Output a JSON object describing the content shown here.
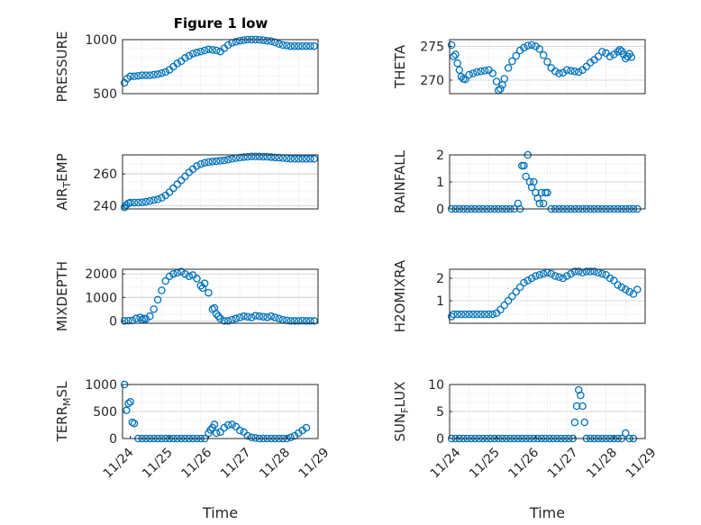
{
  "title": "Figure 1 low",
  "colors": {
    "marker": "#0072BD",
    "axes": "#262626",
    "grid": "#d9d9d9"
  },
  "chart_data": [
    {
      "type": "scatter",
      "ylabel": "PRESSURE",
      "ylim": [
        500,
        1000
      ],
      "yticks": [
        500,
        1000
      ],
      "grid": true,
      "xlim": [
        0,
        5
      ],
      "xticks": [],
      "xticklabels": [],
      "xlabel": "",
      "x": [
        0.05,
        0.12,
        0.2,
        0.3,
        0.4,
        0.5,
        0.6,
        0.7,
        0.8,
        0.9,
        1.0,
        1.1,
        1.2,
        1.3,
        1.4,
        1.5,
        1.6,
        1.7,
        1.8,
        1.9,
        2.0,
        2.1,
        2.2,
        2.3,
        2.4,
        2.5,
        2.6,
        2.7,
        2.8,
        2.9,
        3.0,
        3.1,
        3.2,
        3.3,
        3.4,
        3.5,
        3.6,
        3.7,
        3.8,
        3.9,
        4.0,
        4.1,
        4.2,
        4.3,
        4.4,
        4.5,
        4.6,
        4.7,
        4.8,
        4.9
      ],
      "y": [
        600,
        640,
        660,
        660,
        665,
        670,
        670,
        670,
        675,
        680,
        690,
        700,
        720,
        750,
        780,
        800,
        830,
        850,
        870,
        880,
        890,
        900,
        910,
        905,
        900,
        890,
        920,
        950,
        970,
        980,
        990,
        995,
        1000,
        1000,
        1000,
        998,
        995,
        990,
        985,
        975,
        960,
        950,
        945,
        940,
        940,
        940,
        940,
        940,
        940,
        940
      ]
    },
    {
      "type": "scatter",
      "ylabel": "THETA",
      "ylim": [
        268,
        276
      ],
      "yticks": [
        270,
        275
      ],
      "grid": true,
      "xlim": [
        0,
        5
      ],
      "xticks": [],
      "xticklabels": [],
      "xlabel": "",
      "x": [
        0.05,
        0.1,
        0.15,
        0.2,
        0.25,
        0.3,
        0.35,
        0.4,
        0.5,
        0.6,
        0.7,
        0.8,
        0.9,
        1.0,
        1.1,
        1.2,
        1.25,
        1.3,
        1.35,
        1.4,
        1.5,
        1.6,
        1.7,
        1.8,
        1.9,
        2.0,
        2.1,
        2.2,
        2.3,
        2.4,
        2.5,
        2.6,
        2.7,
        2.8,
        2.9,
        3.0,
        3.1,
        3.2,
        3.3,
        3.4,
        3.5,
        3.6,
        3.7,
        3.8,
        3.9,
        4.0,
        4.1,
        4.2,
        4.3,
        4.35,
        4.4,
        4.45,
        4.5,
        4.55,
        4.6,
        4.65
      ],
      "y": [
        275.2,
        273.5,
        273.8,
        272.5,
        271.5,
        270.5,
        270.2,
        270.1,
        270.8,
        271.0,
        271.2,
        271.3,
        271.4,
        271.5,
        271.0,
        269.8,
        268.5,
        268.7,
        269.3,
        270.2,
        271.8,
        272.8,
        273.6,
        274.4,
        274.8,
        275.1,
        275.2,
        275.0,
        274.6,
        273.7,
        272.7,
        271.8,
        271.3,
        271.0,
        271.1,
        271.5,
        271.4,
        271.3,
        271.2,
        271.5,
        272.0,
        272.6,
        273.0,
        273.5,
        274.2,
        274.0,
        273.5,
        273.8,
        274.2,
        274.5,
        274.3,
        273.8,
        273.2,
        273.5,
        273.9,
        273.4
      ]
    },
    {
      "type": "scatter",
      "ylabel": "AIR_TEMP",
      "ylim": [
        238,
        272
      ],
      "yticks": [
        240,
        260
      ],
      "grid": true,
      "xlim": [
        0,
        5
      ],
      "xticks": [],
      "xticklabels": [],
      "xlabel": "",
      "x": [
        0.05,
        0.1,
        0.15,
        0.2,
        0.3,
        0.4,
        0.5,
        0.6,
        0.7,
        0.8,
        0.9,
        1.0,
        1.1,
        1.2,
        1.3,
        1.4,
        1.5,
        1.6,
        1.7,
        1.8,
        1.9,
        2.0,
        2.1,
        2.2,
        2.3,
        2.4,
        2.5,
        2.6,
        2.7,
        2.8,
        2.9,
        3.0,
        3.1,
        3.2,
        3.3,
        3.4,
        3.5,
        3.6,
        3.7,
        3.8,
        3.9,
        4.0,
        4.1,
        4.2,
        4.3,
        4.4,
        4.5,
        4.6,
        4.7,
        4.8,
        4.9
      ],
      "y": [
        239,
        240.5,
        241.5,
        242,
        242,
        242,
        242.2,
        242.5,
        243,
        243.5,
        244,
        245,
        246.5,
        248.5,
        251,
        253.5,
        256,
        258.5,
        261,
        263,
        265,
        266.2,
        267,
        267.5,
        267.8,
        268,
        268.3,
        268.5,
        269,
        269.5,
        270,
        270.3,
        270.6,
        270.8,
        271,
        271,
        271,
        270.9,
        270.8,
        270.6,
        270.4,
        270.2,
        270,
        269.8,
        269.6,
        269.5,
        269.5,
        269.5,
        269.5,
        269.5,
        269.5
      ]
    },
    {
      "type": "scatter",
      "ylabel": "RAINFALL",
      "ylim": [
        0,
        2
      ],
      "yticks": [
        0,
        1,
        2
      ],
      "grid": true,
      "xlim": [
        0,
        5
      ],
      "xticks": [],
      "xticklabels": [],
      "xlabel": "",
      "x": [
        0.05,
        0.15,
        0.25,
        0.35,
        0.45,
        0.55,
        0.65,
        0.75,
        0.85,
        0.95,
        1.05,
        1.15,
        1.25,
        1.35,
        1.45,
        1.55,
        1.65,
        1.75,
        1.8,
        1.85,
        1.9,
        1.95,
        2.0,
        2.05,
        2.1,
        2.15,
        2.2,
        2.25,
        2.3,
        2.35,
        2.4,
        2.45,
        2.5,
        2.6,
        2.7,
        2.8,
        2.9,
        3.0,
        3.1,
        3.2,
        3.3,
        3.4,
        3.5,
        3.6,
        3.7,
        3.8,
        3.9,
        4.0,
        4.1,
        4.2,
        4.3,
        4.4,
        4.5,
        4.6,
        4.7,
        4.8
      ],
      "y": [
        0,
        0,
        0,
        0,
        0,
        0,
        0,
        0,
        0,
        0,
        0,
        0,
        0,
        0,
        0,
        0,
        0,
        0.2,
        0,
        1.6,
        1.6,
        1.2,
        2.0,
        1.0,
        0.8,
        1.0,
        0.6,
        0.4,
        0.2,
        0.6,
        0.2,
        0.6,
        0.6,
        0,
        0,
        0,
        0,
        0,
        0,
        0,
        0,
        0,
        0,
        0,
        0,
        0,
        0,
        0,
        0,
        0,
        0,
        0,
        0,
        0,
        0,
        0
      ]
    },
    {
      "type": "scatter",
      "ylabel": "MIXDEPTH",
      "ylim": [
        -100,
        2200
      ],
      "yticks": [
        0,
        1000,
        2000
      ],
      "grid": true,
      "xlim": [
        0,
        5
      ],
      "xticks": [],
      "xticklabels": [],
      "xlabel": "",
      "x": [
        0.05,
        0.15,
        0.25,
        0.35,
        0.45,
        0.5,
        0.55,
        0.6,
        0.7,
        0.8,
        0.9,
        1.0,
        1.1,
        1.2,
        1.3,
        1.4,
        1.5,
        1.6,
        1.7,
        1.8,
        1.9,
        2.0,
        2.05,
        2.1,
        2.2,
        2.3,
        2.35,
        2.4,
        2.45,
        2.5,
        2.6,
        2.7,
        2.8,
        2.9,
        3.0,
        3.1,
        3.2,
        3.3,
        3.4,
        3.5,
        3.6,
        3.7,
        3.8,
        3.9,
        4.0,
        4.1,
        4.2,
        4.3,
        4.4,
        4.5,
        4.6,
        4.7,
        4.8,
        4.9
      ],
      "y": [
        0,
        10,
        20,
        100,
        150,
        50,
        100,
        80,
        200,
        500,
        900,
        1300,
        1700,
        1900,
        2000,
        2050,
        2100,
        2000,
        1900,
        1950,
        1800,
        1500,
        1400,
        1600,
        1200,
        500,
        550,
        300,
        200,
        100,
        0,
        0,
        50,
        100,
        150,
        200,
        180,
        150,
        220,
        200,
        180,
        160,
        200,
        150,
        100,
        50,
        20,
        0,
        0,
        0,
        10,
        0,
        0,
        0
      ]
    },
    {
      "type": "scatter",
      "ylabel": "H2OMIXRA",
      "ylim": [
        0,
        2.4
      ],
      "yticks": [
        1,
        2
      ],
      "grid": true,
      "xlim": [
        0,
        5
      ],
      "xticks": [],
      "xticklabels": [],
      "xlabel": "",
      "x": [
        0.05,
        0.1,
        0.2,
        0.3,
        0.4,
        0.5,
        0.6,
        0.7,
        0.8,
        0.9,
        1.0,
        1.1,
        1.2,
        1.3,
        1.4,
        1.5,
        1.6,
        1.7,
        1.8,
        1.9,
        2.0,
        2.1,
        2.2,
        2.3,
        2.4,
        2.5,
        2.6,
        2.7,
        2.8,
        2.9,
        3.0,
        3.1,
        3.2,
        3.3,
        3.4,
        3.5,
        3.6,
        3.7,
        3.8,
        3.9,
        4.0,
        4.1,
        4.2,
        4.3,
        4.4,
        4.5,
        4.6,
        4.7,
        4.8
      ],
      "y": [
        0.3,
        0.4,
        0.4,
        0.4,
        0.4,
        0.4,
        0.4,
        0.4,
        0.4,
        0.4,
        0.4,
        0.4,
        0.45,
        0.6,
        0.8,
        1.0,
        1.2,
        1.4,
        1.6,
        1.8,
        1.9,
        2.0,
        2.1,
        2.15,
        2.2,
        2.25,
        2.2,
        2.1,
        2.05,
        2.0,
        2.1,
        2.2,
        2.3,
        2.3,
        2.25,
        2.3,
        2.3,
        2.3,
        2.25,
        2.2,
        2.15,
        2.0,
        1.9,
        1.7,
        1.6,
        1.5,
        1.4,
        1.3,
        1.5
      ]
    },
    {
      "type": "scatter",
      "ylabel": "TERR_MSL",
      "ylim": [
        0,
        1000
      ],
      "yticks": [
        0,
        500,
        1000
      ],
      "grid": true,
      "xlim": [
        0,
        5
      ],
      "xticks": [
        0.2,
        1.2,
        2.2,
        3.2,
        4.2,
        5.2
      ],
      "xticklabels": [
        "11/24",
        "11/25",
        "11/26",
        "11/27",
        "11/28",
        "11/29"
      ],
      "xlabel": "Time",
      "x": [
        0.05,
        0.1,
        0.15,
        0.2,
        0.25,
        0.3,
        0.4,
        0.5,
        0.6,
        0.7,
        0.8,
        0.9,
        1.0,
        1.1,
        1.2,
        1.3,
        1.4,
        1.5,
        1.6,
        1.7,
        1.8,
        1.9,
        2.0,
        2.1,
        2.2,
        2.25,
        2.3,
        2.35,
        2.4,
        2.5,
        2.6,
        2.7,
        2.8,
        2.9,
        3.0,
        3.1,
        3.2,
        3.3,
        3.4,
        3.5,
        3.6,
        3.7,
        3.8,
        3.9,
        4.0,
        4.1,
        4.2,
        4.3,
        4.4,
        4.5,
        4.6,
        4.7
      ],
      "y": [
        1000,
        520,
        650,
        680,
        300,
        280,
        0,
        0,
        0,
        0,
        0,
        0,
        0,
        0,
        0,
        0,
        0,
        0,
        0,
        0,
        0,
        0,
        0,
        0,
        100,
        160,
        200,
        260,
        100,
        120,
        200,
        250,
        260,
        220,
        150,
        120,
        50,
        20,
        10,
        0,
        0,
        0,
        0,
        0,
        0,
        0,
        0,
        20,
        50,
        100,
        150,
        200
      ]
    },
    {
      "type": "scatter",
      "ylabel": "SUN_FLUX",
      "ylim": [
        0,
        10
      ],
      "yticks": [
        0,
        5,
        10
      ],
      "grid": true,
      "xlim": [
        0,
        5
      ],
      "xticks": [
        0.2,
        1.2,
        2.2,
        3.2,
        4.2,
        5.2
      ],
      "xticklabels": [
        "11/24",
        "11/25",
        "11/26",
        "11/27",
        "11/28",
        "11/29"
      ],
      "xlabel": "Time",
      "x": [
        0.05,
        0.15,
        0.25,
        0.35,
        0.45,
        0.55,
        0.65,
        0.75,
        0.85,
        0.95,
        1.05,
        1.15,
        1.25,
        1.35,
        1.45,
        1.55,
        1.65,
        1.75,
        1.85,
        1.95,
        2.05,
        2.15,
        2.25,
        2.35,
        2.45,
        2.55,
        2.65,
        2.75,
        2.85,
        2.95,
        3.05,
        3.15,
        3.2,
        3.25,
        3.3,
        3.35,
        3.4,
        3.45,
        3.5,
        3.6,
        3.7,
        3.8,
        3.9,
        4.0,
        4.1,
        4.2,
        4.3,
        4.4,
        4.5,
        4.6,
        4.7
      ],
      "y": [
        0,
        0,
        0,
        0,
        0,
        0,
        0,
        0,
        0,
        0,
        0,
        0,
        0,
        0,
        0,
        0,
        0,
        0,
        0,
        0,
        0,
        0,
        0,
        0,
        0,
        0,
        0,
        0,
        0,
        0,
        0,
        0,
        3,
        6,
        9,
        8,
        6,
        3,
        0,
        0,
        0,
        0,
        0,
        0,
        0,
        0,
        0,
        0,
        1,
        0,
        0
      ]
    }
  ]
}
